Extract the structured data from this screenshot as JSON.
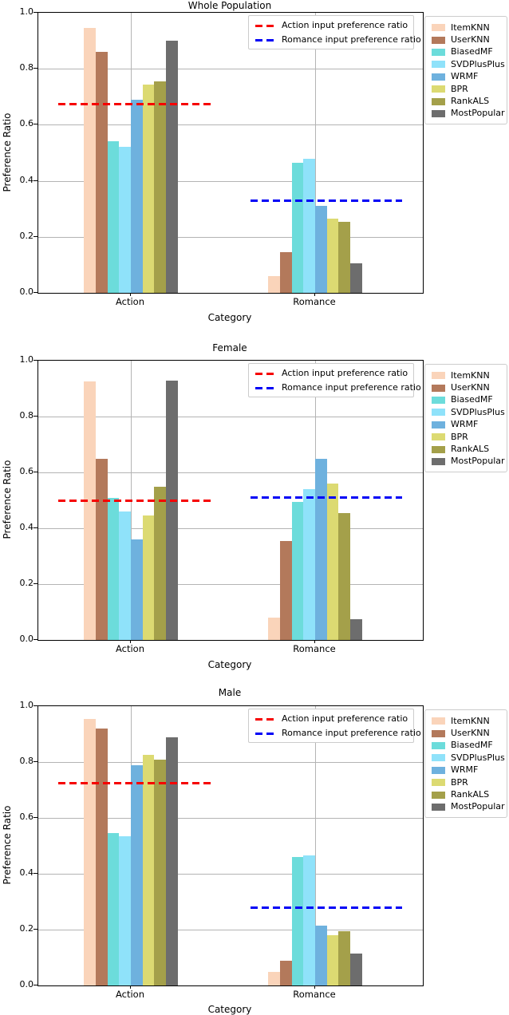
{
  "figure": {
    "ylabel": "Preference Ratio",
    "xlabel": "Category",
    "yticks": [
      "0.0",
      "0.2",
      "0.4",
      "0.6",
      "0.8",
      "1.0"
    ],
    "categories": [
      "Action",
      "Romance"
    ],
    "palette": {
      "ItemKNN": "#fad4ba",
      "UserKNN": "#b3795b",
      "BiasedMF": "#6cdcdb",
      "SVDPlusPlus": "#8fe2fa",
      "WRMF": "#6eb1de",
      "BPR": "#dcda72",
      "RankALS": "#a4a04a",
      "MostPopular": "#6d6d6d"
    },
    "line_colors": {
      "action": "#f60000",
      "romance": "#0000f6"
    },
    "grid_color": "#b4b4b4"
  },
  "chart_data": [
    {
      "type": "bar",
      "title": "Whole Population",
      "xlabel": "Category",
      "ylabel": "Preference Ratio",
      "ylim": [
        0.0,
        1.0
      ],
      "grid": true,
      "legend_position": "right",
      "categories": [
        "Action",
        "Romance"
      ],
      "series": [
        {
          "name": "ItemKNN",
          "values": [
            0.945,
            0.06
          ]
        },
        {
          "name": "UserKNN",
          "values": [
            0.86,
            0.145
          ]
        },
        {
          "name": "BiasedMF",
          "values": [
            0.54,
            0.465
          ]
        },
        {
          "name": "SVDPlusPlus",
          "values": [
            0.52,
            0.48
          ]
        },
        {
          "name": "WRMF",
          "values": [
            0.69,
            0.31
          ]
        },
        {
          "name": "BPR",
          "values": [
            0.745,
            0.265
          ]
        },
        {
          "name": "RankALS",
          "values": [
            0.755,
            0.255
          ]
        },
        {
          "name": "MostPopular",
          "values": [
            0.9,
            0.105
          ]
        }
      ],
      "hlines": [
        {
          "label": "Action input preference ratio",
          "y": 0.675,
          "span": "action"
        },
        {
          "label": "Romance input preference ratio",
          "y": 0.33,
          "span": "romance"
        }
      ]
    },
    {
      "type": "bar",
      "title": "Female",
      "xlabel": "Category",
      "ylabel": "Preference Ratio",
      "ylim": [
        0.0,
        1.0
      ],
      "grid": true,
      "legend_position": "right",
      "categories": [
        "Action",
        "Romance"
      ],
      "series": [
        {
          "name": "ItemKNN",
          "values": [
            0.925,
            0.08
          ]
        },
        {
          "name": "UserKNN",
          "values": [
            0.65,
            0.355
          ]
        },
        {
          "name": "BiasedMF",
          "values": [
            0.51,
            0.495
          ]
        },
        {
          "name": "SVDPlusPlus",
          "values": [
            0.46,
            0.54
          ]
        },
        {
          "name": "WRMF",
          "values": [
            0.36,
            0.65
          ]
        },
        {
          "name": "BPR",
          "values": [
            0.445,
            0.56
          ]
        },
        {
          "name": "RankALS",
          "values": [
            0.55,
            0.455
          ]
        },
        {
          "name": "MostPopular",
          "values": [
            0.93,
            0.075
          ]
        }
      ],
      "hlines": [
        {
          "label": "Action input preference ratio",
          "y": 0.5,
          "span": "action"
        },
        {
          "label": "Romance input preference ratio",
          "y": 0.51,
          "span": "romance"
        }
      ]
    },
    {
      "type": "bar",
      "title": "Male",
      "xlabel": "Category",
      "ylabel": "Preference Ratio",
      "ylim": [
        0.0,
        1.0
      ],
      "grid": true,
      "legend_position": "right",
      "categories": [
        "Action",
        "Romance"
      ],
      "series": [
        {
          "name": "ItemKNN",
          "values": [
            0.955,
            0.05
          ]
        },
        {
          "name": "UserKNN",
          "values": [
            0.92,
            0.09
          ]
        },
        {
          "name": "BiasedMF",
          "values": [
            0.545,
            0.46
          ]
        },
        {
          "name": "SVDPlusPlus",
          "values": [
            0.535,
            0.465
          ]
        },
        {
          "name": "WRMF",
          "values": [
            0.79,
            0.215
          ]
        },
        {
          "name": "BPR",
          "values": [
            0.825,
            0.18
          ]
        },
        {
          "name": "RankALS",
          "values": [
            0.81,
            0.195
          ]
        },
        {
          "name": "MostPopular",
          "values": [
            0.89,
            0.115
          ]
        }
      ],
      "hlines": [
        {
          "label": "Action input preference ratio",
          "y": 0.725,
          "span": "action"
        },
        {
          "label": "Romance input preference ratio",
          "y": 0.28,
          "span": "romance"
        }
      ]
    }
  ]
}
